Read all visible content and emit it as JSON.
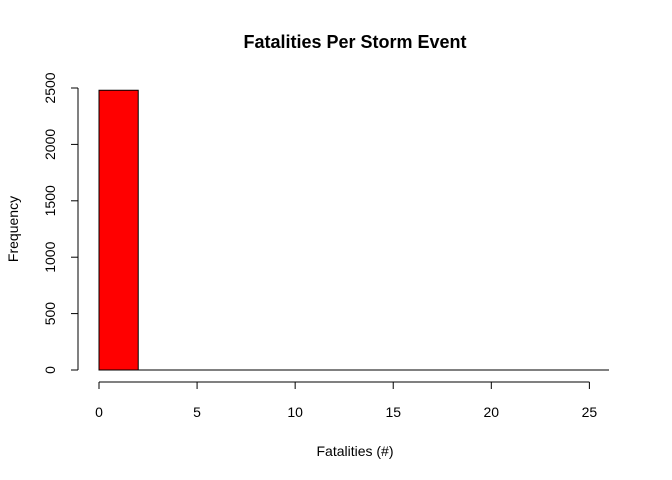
{
  "chart_data": {
    "type": "bar",
    "title": "Fatalities Per Storm Event",
    "xlabel": "Fatalities (#)",
    "ylabel": "Frequency",
    "bins": [
      {
        "start": 0,
        "end": 2,
        "count": 2480
      },
      {
        "start": 2,
        "end": 4,
        "count": 0
      },
      {
        "start": 4,
        "end": 6,
        "count": 0
      },
      {
        "start": 6,
        "end": 8,
        "count": 0
      },
      {
        "start": 8,
        "end": 10,
        "count": 0
      },
      {
        "start": 10,
        "end": 12,
        "count": 0
      },
      {
        "start": 12,
        "end": 14,
        "count": 0
      },
      {
        "start": 14,
        "end": 16,
        "count": 0
      },
      {
        "start": 16,
        "end": 18,
        "count": 0
      },
      {
        "start": 18,
        "end": 20,
        "count": 0
      },
      {
        "start": 20,
        "end": 22,
        "count": 0
      },
      {
        "start": 22,
        "end": 24,
        "count": 0
      },
      {
        "start": 24,
        "end": 26,
        "count": 0
      }
    ],
    "xlim": [
      0,
      26
    ],
    "ylim": [
      0,
      2500
    ],
    "x_ticks": [
      0,
      5,
      10,
      15,
      20,
      25
    ],
    "y_ticks": [
      0,
      500,
      1000,
      1500,
      2000,
      2500
    ],
    "bar_color": "#ff0000",
    "bar_edge_color": "#000000",
    "grid": false,
    "legend": "none"
  }
}
